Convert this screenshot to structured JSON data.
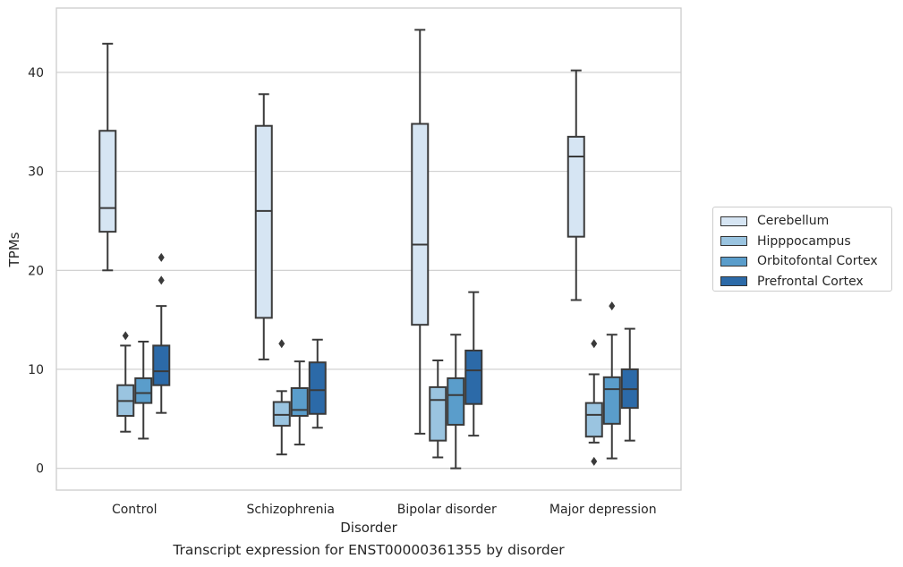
{
  "chart_data": {
    "type": "box",
    "xlabel": "Disorder",
    "ylabel": "TPMs",
    "ylim": [
      -2.2,
      46.5
    ],
    "yticks": [
      0,
      10,
      20,
      30,
      40
    ],
    "grid": "horizontal",
    "legend_position": "right",
    "caption": "Transcript expression for ENST00000361355 by disorder",
    "categories": [
      "Control",
      "Schizophrenia",
      "Bipolar disorder",
      "Major depression"
    ],
    "series": [
      {
        "name": "Cerebellum",
        "color": "#d6e5f3",
        "boxes": [
          {
            "whislo": 20.0,
            "q1": 23.9,
            "med": 26.3,
            "q3": 34.1,
            "whishi": 42.9,
            "fliers": []
          },
          {
            "whislo": 11.0,
            "q1": 15.2,
            "med": 26.0,
            "q3": 34.6,
            "whishi": 37.8,
            "fliers": []
          },
          {
            "whislo": 3.5,
            "q1": 14.5,
            "med": 22.6,
            "q3": 34.8,
            "whishi": 44.3,
            "fliers": []
          },
          {
            "whislo": 17.0,
            "q1": 23.4,
            "med": 31.5,
            "q3": 33.5,
            "whishi": 40.2,
            "fliers": []
          }
        ]
      },
      {
        "name": "Hipppocampus",
        "color": "#9ac4e0",
        "boxes": [
          {
            "whislo": 3.7,
            "q1": 5.3,
            "med": 6.8,
            "q3": 8.4,
            "whishi": 12.4,
            "fliers": [
              13.4
            ]
          },
          {
            "whislo": 1.4,
            "q1": 4.3,
            "med": 5.4,
            "q3": 6.7,
            "whishi": 7.8,
            "fliers": [
              12.6
            ]
          },
          {
            "whislo": 1.1,
            "q1": 2.8,
            "med": 6.9,
            "q3": 8.2,
            "whishi": 10.9,
            "fliers": []
          },
          {
            "whislo": 2.6,
            "q1": 3.2,
            "med": 5.4,
            "q3": 6.6,
            "whishi": 9.5,
            "fliers": [
              0.7,
              12.6
            ]
          }
        ]
      },
      {
        "name": "Orbitofontal Cortex",
        "color": "#5a9dcb",
        "boxes": [
          {
            "whislo": 3.0,
            "q1": 6.6,
            "med": 7.6,
            "q3": 9.1,
            "whishi": 12.8,
            "fliers": []
          },
          {
            "whislo": 2.4,
            "q1": 5.3,
            "med": 5.9,
            "q3": 8.1,
            "whishi": 10.8,
            "fliers": []
          },
          {
            "whislo": 0.0,
            "q1": 4.4,
            "med": 7.4,
            "q3": 9.1,
            "whishi": 13.5,
            "fliers": []
          },
          {
            "whislo": 1.0,
            "q1": 4.5,
            "med": 8.0,
            "q3": 9.2,
            "whishi": 13.5,
            "fliers": [
              16.4
            ]
          }
        ]
      },
      {
        "name": "Prefrontal Cortex",
        "color": "#2c6aa8",
        "boxes": [
          {
            "whislo": 5.6,
            "q1": 8.4,
            "med": 9.8,
            "q3": 12.4,
            "whishi": 16.4,
            "fliers": [
              19.0,
              21.3
            ]
          },
          {
            "whislo": 4.1,
            "q1": 5.5,
            "med": 7.9,
            "q3": 10.7,
            "whishi": 13.0,
            "fliers": []
          },
          {
            "whislo": 3.3,
            "q1": 6.5,
            "med": 9.9,
            "q3": 11.9,
            "whishi": 17.8,
            "fliers": []
          },
          {
            "whislo": 2.8,
            "q1": 6.1,
            "med": 8.0,
            "q3": 10.0,
            "whishi": 14.1,
            "fliers": []
          }
        ]
      }
    ]
  }
}
